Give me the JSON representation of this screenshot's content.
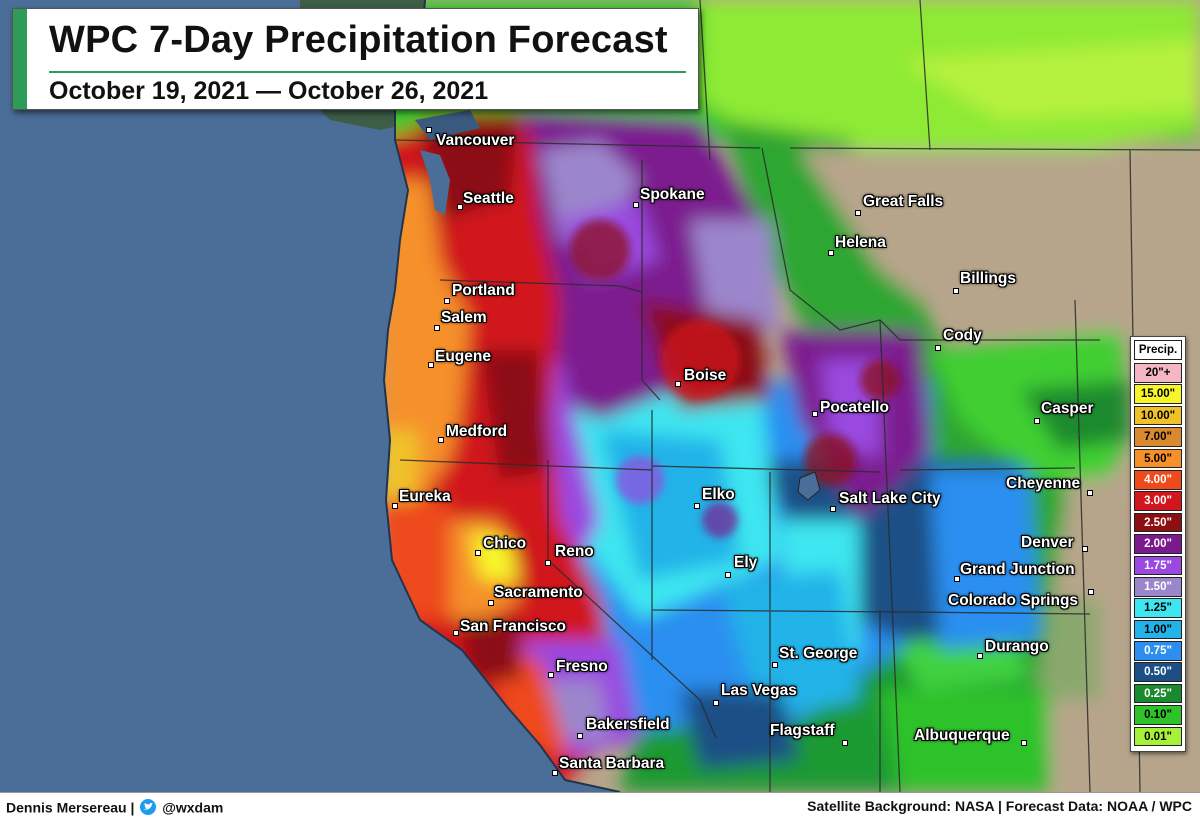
{
  "title": "WPC 7-Day Precipitation Forecast",
  "subtitle": "October 19, 2021 — October 26, 2021",
  "legend": {
    "title": "Precip.",
    "items": [
      {
        "label": "20\"+",
        "color": "#f4b6c2",
        "text": "#000000"
      },
      {
        "label": "15.00\"",
        "color": "#f6f62a",
        "text": "#000000"
      },
      {
        "label": "10.00\"",
        "color": "#f0c22a",
        "text": "#000000"
      },
      {
        "label": "7.00\"",
        "color": "#d98a30",
        "text": "#000000"
      },
      {
        "label": "5.00\"",
        "color": "#f5902a",
        "text": "#000000"
      },
      {
        "label": "4.00\"",
        "color": "#ee4a1c",
        "text": "#ffffff"
      },
      {
        "label": "3.00\"",
        "color": "#d1161d",
        "text": "#ffffff"
      },
      {
        "label": "2.50\"",
        "color": "#8c0f12",
        "text": "#ffffff"
      },
      {
        "label": "2.00\"",
        "color": "#7b1a8f",
        "text": "#ffffff"
      },
      {
        "label": "1.75\"",
        "color": "#9a48e0",
        "text": "#ffffff"
      },
      {
        "label": "1.50\"",
        "color": "#9b86cc",
        "text": "#ffffff"
      },
      {
        "label": "1.25\"",
        "color": "#3de6f0",
        "text": "#000000"
      },
      {
        "label": "1.00\"",
        "color": "#23b3e8",
        "text": "#000000"
      },
      {
        "label": "0.75\"",
        "color": "#2c8ff0",
        "text": "#ffffff"
      },
      {
        "label": "0.50\"",
        "color": "#1c4f86",
        "text": "#ffffff"
      },
      {
        "label": "0.25\"",
        "color": "#1a8a2e",
        "text": "#ffffff"
      },
      {
        "label": "0.10\"",
        "color": "#2fc22a",
        "text": "#000000"
      },
      {
        "label": "0.01\"",
        "color": "#a6f23a",
        "text": "#000000"
      }
    ]
  },
  "cities": [
    {
      "name": "Vancouver"
    },
    {
      "name": "Seattle"
    },
    {
      "name": "Spokane"
    },
    {
      "name": "Portland"
    },
    {
      "name": "Salem"
    },
    {
      "name": "Eugene"
    },
    {
      "name": "Medford"
    },
    {
      "name": "Eureka"
    },
    {
      "name": "Chico"
    },
    {
      "name": "Reno"
    },
    {
      "name": "Sacramento"
    },
    {
      "name": "San Francisco"
    },
    {
      "name": "Fresno"
    },
    {
      "name": "Bakersfield"
    },
    {
      "name": "Santa Barbara"
    },
    {
      "name": "Great Falls"
    },
    {
      "name": "Helena"
    },
    {
      "name": "Billings"
    },
    {
      "name": "Cody"
    },
    {
      "name": "Boise"
    },
    {
      "name": "Pocatello"
    },
    {
      "name": "Casper"
    },
    {
      "name": "Elko"
    },
    {
      "name": "Salt Lake City"
    },
    {
      "name": "Cheyenne"
    },
    {
      "name": "Denver"
    },
    {
      "name": "Ely"
    },
    {
      "name": "Grand Junction"
    },
    {
      "name": "Colorado Springs"
    },
    {
      "name": "St. George"
    },
    {
      "name": "Durango"
    },
    {
      "name": "Las Vegas"
    },
    {
      "name": "Flagstaff"
    },
    {
      "name": "Albuquerque"
    }
  ],
  "footer": {
    "author": "Dennis Mersereau |",
    "handle": "@wxdam",
    "credits": "Satellite Background: NASA | Forecast Data: NOAA / WPC"
  },
  "colors": {
    "ocean": "#4d6f99",
    "accent": "#2e9c59",
    "land_tan": "#b7a58b"
  }
}
